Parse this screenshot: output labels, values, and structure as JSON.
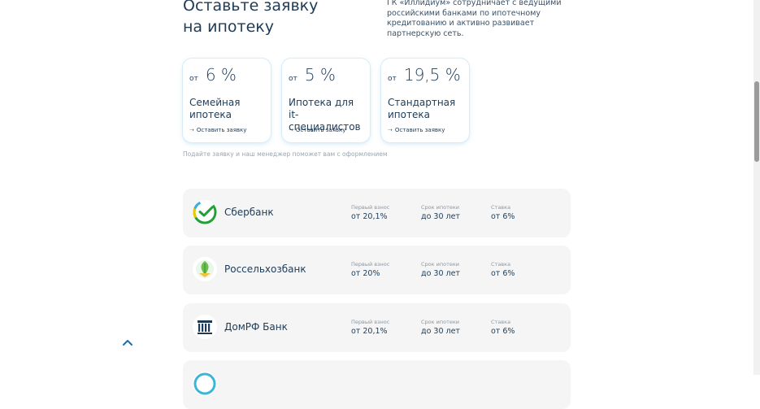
{
  "heading": {
    "line1": "Оставьте заявку",
    "line2": "на ипотеку"
  },
  "intro": "ГК «Иллидиум» сотрудничает с ведущими российскими банками по ипотечному кредитованию и активно развивает партнерскую сеть.",
  "cards": [
    {
      "from": "от",
      "rate": "6 %",
      "name": "Семейная ипотека",
      "apply": "Оставить заявку"
    },
    {
      "from": "от",
      "rate": "5 %",
      "name": "Ипотека для it-специалистов",
      "apply": "Оставить заявку"
    },
    {
      "from": "от",
      "rate": "19,5 %",
      "name": "Стандартная ипотека",
      "apply": "Оставить заявку"
    }
  ],
  "hint": "Подайте заявку и наш менеджер поможет вам с оформлением",
  "labels": {
    "down_payment": "Первый взнос",
    "term": "Срок ипотеки",
    "rate": "Ставка"
  },
  "banks": [
    {
      "name": "Сбербанк",
      "down_payment": "от 20,1%",
      "term": "до 30 лет",
      "rate": "от 6%"
    },
    {
      "name": "Россельхозбанк",
      "down_payment": "от 20%",
      "term": "до 30 лет",
      "rate": "от 6%"
    },
    {
      "name": "ДомРФ Банк",
      "down_payment": "от 20,1%",
      "term": "до 30 лет",
      "rate": "от 6%"
    }
  ],
  "icons": {
    "apply_arrow": "arrow-right-icon",
    "scroll_top": "chevron-up-icon"
  },
  "colors": {
    "text_primary": "#1d3b57",
    "card_border": "#d8ecf8",
    "bank_bg": "#f5f5f5",
    "accent": "#2a7bbf"
  }
}
